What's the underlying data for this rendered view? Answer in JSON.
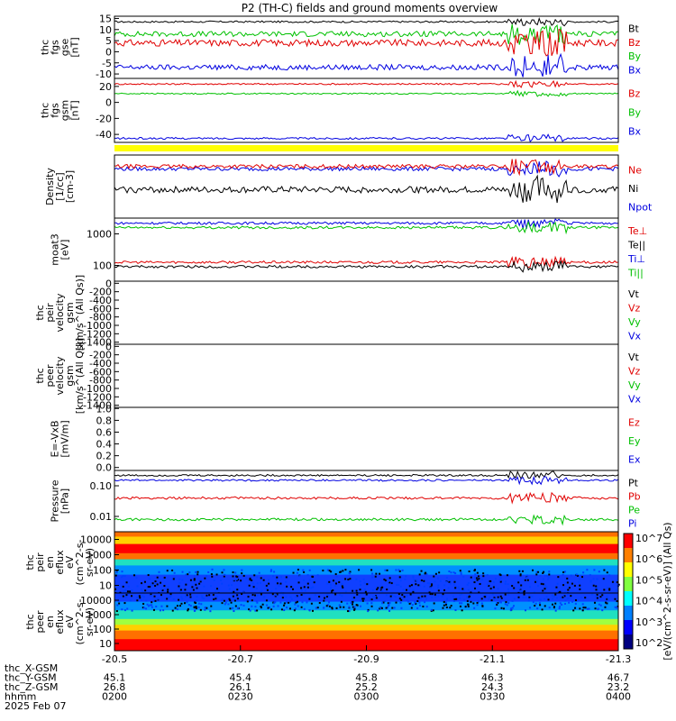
{
  "chart_data": {
    "type": "line",
    "title": "P2 (TH-C) fields and ground moments overview",
    "x_ticks": [
      "-20.5",
      "-20.7",
      "-20.9",
      "-21.1",
      "-21.3"
    ],
    "ephemeris": {
      "labels": [
        "thc_X-GSM",
        "thc_Y-GSM",
        "thc_Z-GSM",
        "hhmm",
        "2025 Feb 07"
      ],
      "rows": [
        [
          "45.1",
          "45.4",
          "45.8",
          "46.3",
          "46.7"
        ],
        [
          "26.8",
          "26.1",
          "25.2",
          "24.3",
          "23.2"
        ],
        [
          "0200",
          "0230",
          "0300",
          "0330",
          "0400"
        ]
      ]
    },
    "colorbar": {
      "ticks": [
        "10^7",
        "10^6",
        "10^5",
        "10^4",
        "10^3",
        "10^2"
      ],
      "label": "[eV/(cm^2-s-sr-eV)] (All Qs)"
    },
    "panels": [
      {
        "ylabel": [
          "thc",
          "fgs",
          "gse",
          "[nT]"
        ],
        "yticks": [
          "15",
          "10",
          "5",
          "0",
          "-5",
          "-10"
        ],
        "ylim": [
          -12,
          16
        ],
        "legend": [
          {
            "name": "Bt",
            "color": "#000000"
          },
          {
            "name": "Bz",
            "color": "#e00000"
          },
          {
            "name": "By",
            "color": "#00c000"
          },
          {
            "name": "Bx",
            "color": "#0000e0"
          }
        ],
        "series": [
          {
            "name": "Bt",
            "color": "#000000",
            "baseline": 13.5,
            "noise": 0.4
          },
          {
            "name": "By",
            "color": "#00c000",
            "baseline": 8,
            "noise": 1.2
          },
          {
            "name": "Bz",
            "color": "#e00000",
            "baseline": 4,
            "noise": 1.5
          },
          {
            "name": "Bx",
            "color": "#0000e0",
            "baseline": -7,
            "noise": 1.2
          }
        ]
      },
      {
        "ylabel": [
          "thc",
          "fgs",
          "gsm",
          "[nT]"
        ],
        "yticks": [
          "20",
          "0",
          "-20",
          "-40"
        ],
        "ylim": [
          -50,
          30
        ],
        "legend": [
          {
            "name": "Bz",
            "color": "#e00000"
          },
          {
            "name": "By",
            "color": "#00c000"
          },
          {
            "name": "Bx",
            "color": "#0000e0"
          }
        ],
        "series": [
          {
            "name": "Bz",
            "color": "#e00000",
            "baseline": 23,
            "noise": 1
          },
          {
            "name": "By",
            "color": "#00c000",
            "baseline": 11,
            "noise": 0.8
          },
          {
            "name": "Bx",
            "color": "#0000e0",
            "baseline": -45,
            "noise": 1.2
          }
        ]
      },
      {
        "ylabel": [
          "Density",
          "[1/cc]",
          "[cm-3]"
        ],
        "yticks": [],
        "ylim": [
          0,
          1
        ],
        "legend": [
          {
            "name": "Ne",
            "color": "#e00000"
          },
          {
            "name": "Ni",
            "color": "#000000"
          },
          {
            "name": "Npot",
            "color": "#0000e0"
          }
        ],
        "series": [
          {
            "name": "Npot",
            "color": "#0000e0",
            "baseline": 0.78,
            "noise": 0.03
          },
          {
            "name": "Ne",
            "color": "#e00000",
            "baseline": 0.82,
            "noise": 0.03
          },
          {
            "name": "Ni",
            "color": "#000000",
            "baseline": 0.45,
            "noise": 0.05
          }
        ]
      },
      {
        "ylabel": [
          "moat3",
          "[eV]"
        ],
        "yticks": [
          "1000",
          "100"
        ],
        "ylim": [
          0,
          1
        ],
        "legend": [
          {
            "name": "Te⊥",
            "color": "#e00000"
          },
          {
            "name": "Te||",
            "color": "#000000"
          },
          {
            "name": "Ti⊥",
            "color": "#0000e0"
          },
          {
            "name": "Ti||",
            "color": "#00c000"
          }
        ],
        "series": [
          {
            "name": "Ti⊥",
            "color": "#0000e0",
            "baseline": 0.92,
            "noise": 0.02
          },
          {
            "name": "Ti||",
            "color": "#00c000",
            "baseline": 0.85,
            "noise": 0.02
          },
          {
            "name": "Te⊥",
            "color": "#e00000",
            "baseline": 0.3,
            "noise": 0.02
          },
          {
            "name": "Te||",
            "color": "#000000",
            "baseline": 0.23,
            "noise": 0.02
          }
        ]
      },
      {
        "ylabel": [
          "thc",
          "peir",
          "velocity",
          "gsm",
          "[km/s^(All Qs)]"
        ],
        "yticks": [
          "0",
          "-200",
          "-400",
          "-600",
          "-800",
          "-1000",
          "-1200",
          "-1400"
        ],
        "ylim": [
          -1450,
          50
        ],
        "legend": [
          {
            "name": "Vt",
            "color": "#000000"
          },
          {
            "name": "Vz",
            "color": "#e00000"
          },
          {
            "name": "Vy",
            "color": "#00c000"
          },
          {
            "name": "Vx",
            "color": "#0000e0"
          }
        ],
        "series": []
      },
      {
        "ylabel": [
          "thc",
          "peer",
          "velocity",
          "gsm",
          "[km/s^(All Qs)]"
        ],
        "yticks": [
          "0",
          "-200",
          "-400",
          "-600",
          "-800",
          "-1000",
          "-1200",
          "-1400"
        ],
        "ylim": [
          -1450,
          50
        ],
        "legend": [
          {
            "name": "Vt",
            "color": "#000000"
          },
          {
            "name": "Vz",
            "color": "#e00000"
          },
          {
            "name": "Vy",
            "color": "#00c000"
          },
          {
            "name": "Vx",
            "color": "#0000e0"
          }
        ],
        "series": []
      },
      {
        "ylabel": [
          "E=-VxB",
          "[mV/m]"
        ],
        "yticks": [
          "1.0",
          "0.8",
          "0.6",
          "0.4",
          "0.2",
          "0.0"
        ],
        "ylim": [
          -0.05,
          1.02
        ],
        "legend": [
          {
            "name": "Ez",
            "color": "#e00000"
          },
          {
            "name": "Ey",
            "color": "#00c000"
          },
          {
            "name": "Ex",
            "color": "#0000e0"
          }
        ],
        "series": []
      },
      {
        "ylabel": [
          "Pressure",
          "[nPa]"
        ],
        "yticks": [
          "0.10",
          "0.01"
        ],
        "ylim": [
          0,
          1
        ],
        "legend": [
          {
            "name": "Pt",
            "color": "#000000"
          },
          {
            "name": "Pb",
            "color": "#e00000"
          },
          {
            "name": "Pe",
            "color": "#00c000"
          },
          {
            "name": "Pi",
            "color": "#0000e0"
          }
        ],
        "series": [
          {
            "name": "Pt",
            "color": "#000000",
            "baseline": 0.92,
            "noise": 0.015
          },
          {
            "name": "Pi",
            "color": "#0000e0",
            "baseline": 0.84,
            "noise": 0.015
          },
          {
            "name": "Pb",
            "color": "#e00000",
            "baseline": 0.55,
            "noise": 0.02
          },
          {
            "name": "Pe",
            "color": "#00c000",
            "baseline": 0.2,
            "noise": 0.02
          }
        ]
      },
      {
        "ylabel": [
          "thc",
          "peir",
          "en",
          "eflux",
          "eV",
          "(cm^2-s-",
          "sr-eV)"
        ],
        "yticks": [
          "10000",
          "1000",
          "100",
          "10"
        ],
        "ylim": [
          0,
          1
        ],
        "legend": [],
        "series": []
      },
      {
        "ylabel": [
          "thc",
          "peer",
          "en",
          "eflux",
          "eV",
          "(cm^2-s-",
          "sr-eV)"
        ],
        "yticks": [
          "10000",
          "1000",
          "100",
          "10"
        ],
        "ylim": [
          0,
          1
        ],
        "legend": [],
        "series": []
      }
    ]
  }
}
